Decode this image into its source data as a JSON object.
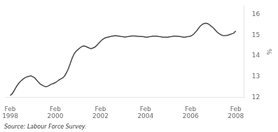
{
  "chart_data": {
    "type": "line",
    "y_label": "%",
    "annotations": [
      "Source: Labour Force Survey."
    ],
    "xlim": [
      1997.9,
      2008.5
    ],
    "ylim": [
      12,
      16.4
    ],
    "yticks": [
      12,
      13,
      14,
      15,
      16
    ],
    "xticks": [
      {
        "value": 1998.125,
        "label": "Feb\n1998"
      },
      {
        "value": 2000.125,
        "label": "Feb\n2000"
      },
      {
        "value": 2002.125,
        "label": "Feb\n2002"
      },
      {
        "value": 2004.125,
        "label": "Feb\n2004"
      },
      {
        "value": 2006.125,
        "label": "Feb\n2006"
      },
      {
        "value": 2008.125,
        "label": "Feb\n2008"
      }
    ],
    "grid": false,
    "color": "#444444",
    "x": [
      1998.125,
      1998.208,
      1998.292,
      1998.375,
      1998.458,
      1998.542,
      1998.625,
      1998.708,
      1998.792,
      1998.875,
      1998.958,
      1999.042,
      1999.125,
      1999.208,
      1999.292,
      1999.375,
      1999.458,
      1999.542,
      1999.625,
      1999.708,
      1999.792,
      1999.875,
      1999.958,
      2000.042,
      2000.125,
      2000.208,
      2000.292,
      2000.375,
      2000.458,
      2000.542,
      2000.625,
      2000.708,
      2000.792,
      2000.875,
      2000.958,
      2001.042,
      2001.125,
      2001.208,
      2001.292,
      2001.375,
      2001.458,
      2001.542,
      2001.625,
      2001.708,
      2001.792,
      2001.875,
      2001.958,
      2002.042,
      2002.125,
      2002.208,
      2002.292,
      2002.375,
      2002.458,
      2002.542,
      2002.625,
      2002.708,
      2002.792,
      2002.875,
      2002.958,
      2003.042,
      2003.125,
      2003.208,
      2003.292,
      2003.375,
      2003.458,
      2003.542,
      2003.625,
      2003.708,
      2003.792,
      2003.875,
      2003.958,
      2004.042,
      2004.125,
      2004.208,
      2004.292,
      2004.375,
      2004.458,
      2004.542,
      2004.625,
      2004.708,
      2004.792,
      2004.875,
      2004.958,
      2005.042,
      2005.125,
      2005.208,
      2005.292,
      2005.375,
      2005.458,
      2005.542,
      2005.625,
      2005.708,
      2005.792,
      2005.875,
      2005.958,
      2006.042,
      2006.125,
      2006.208,
      2006.292,
      2006.375,
      2006.458,
      2006.542,
      2006.625,
      2006.708,
      2006.792,
      2006.875,
      2006.958,
      2007.042,
      2007.125,
      2007.208,
      2007.292,
      2007.375,
      2007.458,
      2007.542,
      2007.625,
      2007.708,
      2007.792,
      2007.875,
      2007.958,
      2008.042,
      2008.125
    ],
    "values": [
      12.1,
      12.18,
      12.32,
      12.48,
      12.62,
      12.74,
      12.82,
      12.9,
      12.96,
      13.0,
      13.02,
      13.05,
      13.0,
      12.95,
      12.85,
      12.75,
      12.65,
      12.6,
      12.55,
      12.52,
      12.55,
      12.6,
      12.65,
      12.68,
      12.72,
      12.78,
      12.85,
      12.9,
      12.95,
      13.05,
      13.2,
      13.4,
      13.65,
      13.9,
      14.1,
      14.22,
      14.3,
      14.38,
      14.44,
      14.48,
      14.46,
      14.42,
      14.38,
      14.35,
      14.38,
      14.42,
      14.5,
      14.6,
      14.7,
      14.78,
      14.84,
      14.88,
      14.9,
      14.92,
      14.95,
      14.96,
      14.97,
      14.96,
      14.95,
      14.93,
      14.92,
      14.9,
      14.92,
      14.93,
      14.95,
      14.96,
      14.96,
      14.95,
      14.94,
      14.93,
      14.93,
      14.92,
      14.9,
      14.9,
      14.92,
      14.93,
      14.95,
      14.95,
      14.95,
      14.93,
      14.92,
      14.9,
      14.9,
      14.9,
      14.9,
      14.92,
      14.93,
      14.95,
      14.95,
      14.94,
      14.93,
      14.92,
      14.9,
      14.9,
      14.92,
      14.93,
      14.95,
      15.0,
      15.08,
      15.18,
      15.3,
      15.42,
      15.5,
      15.55,
      15.57,
      15.55,
      15.5,
      15.42,
      15.35,
      15.25,
      15.15,
      15.08,
      15.02,
      14.98,
      14.97,
      14.98,
      15.0,
      15.03,
      15.06,
      15.1,
      15.2
    ]
  }
}
